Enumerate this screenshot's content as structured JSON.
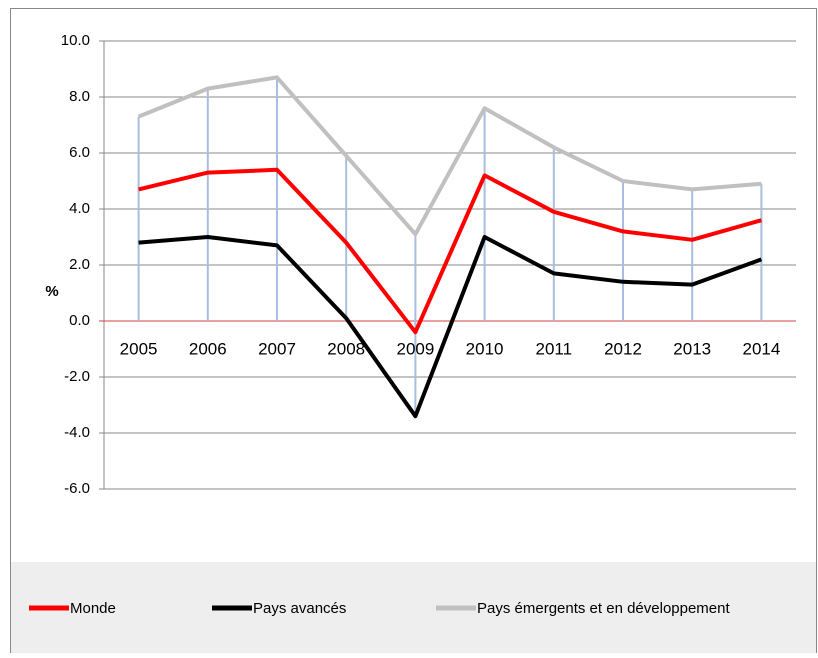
{
  "chart_data": {
    "type": "line",
    "y_label": "%",
    "categories": [
      "2005",
      "2006",
      "2007",
      "2008",
      "2009",
      "2010",
      "2011",
      "2012",
      "2013",
      "2014"
    ],
    "series": [
      {
        "name": "Monde",
        "color": "#ff0000",
        "values": [
          4.7,
          5.3,
          5.4,
          2.8,
          -0.4,
          5.2,
          3.9,
          3.2,
          2.9,
          3.6
        ]
      },
      {
        "name": "Pays avancés",
        "color": "#000000",
        "values": [
          2.8,
          3.0,
          2.7,
          0.1,
          -3.4,
          3.0,
          1.7,
          1.4,
          1.3,
          2.2
        ]
      },
      {
        "name": "Pays émergents et en développement",
        "color": "#c0c0c0",
        "values": [
          7.3,
          8.3,
          8.7,
          5.9,
          3.1,
          7.6,
          6.2,
          5.0,
          4.7,
          4.9
        ]
      }
    ],
    "ylim": [
      -6,
      10
    ],
    "yticks": [
      {
        "value": -6,
        "label": "-6.0"
      },
      {
        "value": -4,
        "label": "-4.0"
      },
      {
        "value": -2,
        "label": "-2.0"
      },
      {
        "value": 0,
        "label": "0.0"
      },
      {
        "value": 2,
        "label": "2.0"
      },
      {
        "value": 4,
        "label": "4.0"
      },
      {
        "value": 6,
        "label": "6.0"
      },
      {
        "value": 8,
        "label": "8.0"
      },
      {
        "value": 10,
        "label": "10.0"
      }
    ],
    "grid": true,
    "legend": "bottom"
  }
}
